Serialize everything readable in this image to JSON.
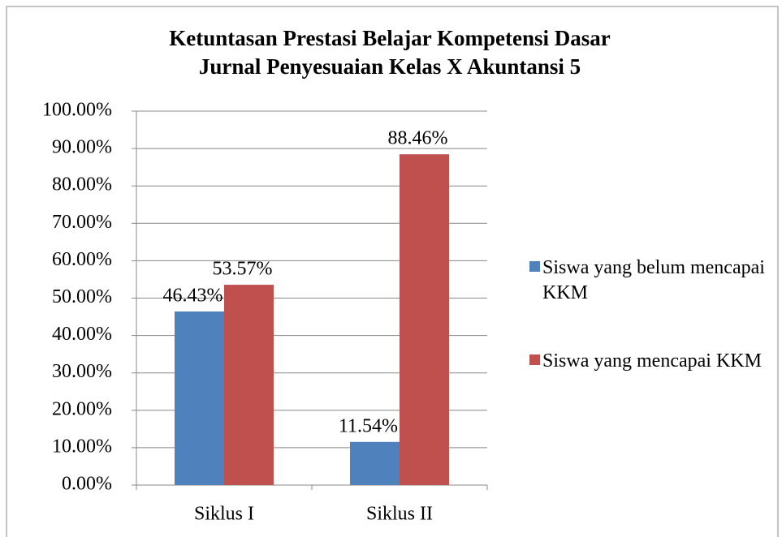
{
  "chart_data": {
    "type": "bar",
    "title": "Ketuntasan Prestasi Belajar Kompetensi Dasar Jurnal Penyesuaian Kelas X Akuntansi 5",
    "categories": [
      "Siklus I",
      "Siklus II"
    ],
    "series": [
      {
        "name": "Siswa yang belum mencapai KKM",
        "color": "#4f81bd",
        "values": [
          46.43,
          11.54
        ],
        "value_labels": [
          "46.43%",
          "11.54%"
        ]
      },
      {
        "name": "Siswa yang mencapai KKM",
        "color": "#c0504d",
        "values": [
          53.57,
          88.46
        ],
        "value_labels": [
          "53.57%",
          "88.46%"
        ]
      }
    ],
    "ylim": [
      0,
      100
    ],
    "yticks": [
      {
        "value": 0,
        "label": "0.00%"
      },
      {
        "value": 10,
        "label": "10.00%"
      },
      {
        "value": 20,
        "label": "20.00%"
      },
      {
        "value": 30,
        "label": "30.00%"
      },
      {
        "value": 40,
        "label": "40.00%"
      },
      {
        "value": 50,
        "label": "50.00%"
      },
      {
        "value": 60,
        "label": "60.00%"
      },
      {
        "value": 70,
        "label": "70.00%"
      },
      {
        "value": 80,
        "label": "80.00%"
      },
      {
        "value": 90,
        "label": "90.00%"
      },
      {
        "value": 100,
        "label": "100.00%"
      }
    ],
    "grid": true,
    "legend": "right"
  }
}
